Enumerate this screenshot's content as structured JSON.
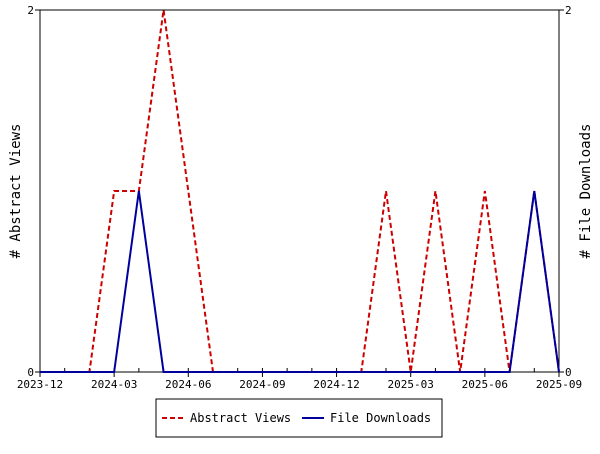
{
  "chart_data": {
    "type": "line",
    "title": "",
    "x": [
      "2023-12",
      "2024-01",
      "2024-02",
      "2024-03",
      "2024-04",
      "2024-05",
      "2024-06",
      "2024-07",
      "2024-08",
      "2024-09",
      "2024-10",
      "2024-11",
      "2024-12",
      "2025-01",
      "2025-02",
      "2025-03",
      "2025-04",
      "2025-05",
      "2025-06",
      "2025-07",
      "2025-08",
      "2025-09"
    ],
    "series": [
      {
        "name": "Abstract Views",
        "axis": "left",
        "color": "#cc0000",
        "style": "dashed",
        "values": [
          0,
          0,
          0,
          1,
          1,
          2,
          1,
          0,
          0,
          0,
          0,
          0,
          0,
          0,
          1,
          0,
          1,
          0,
          1,
          0,
          1,
          0
        ]
      },
      {
        "name": "File Downloads",
        "axis": "right",
        "color": "#00009c",
        "style": "solid",
        "values": [
          0,
          0,
          0,
          0,
          1,
          0,
          0,
          0,
          0,
          0,
          0,
          0,
          0,
          0,
          0,
          0,
          0,
          0,
          0,
          0,
          1,
          0
        ]
      }
    ],
    "x_tick_labels": [
      "2023-12",
      "2024-03",
      "2024-06",
      "2024-09",
      "2024-12",
      "2025-03",
      "2025-06",
      "2025-09"
    ],
    "ylabel": "# Abstract Views",
    "ylabel_right": "# File Downloads",
    "ylim": [
      0,
      2
    ],
    "ylim_right": [
      0,
      2
    ],
    "y_tick_labels": [
      "0",
      "2"
    ],
    "y_tick_labels_right": [
      "0",
      "2"
    ],
    "grid": false,
    "legend_position": "bottom-center"
  }
}
